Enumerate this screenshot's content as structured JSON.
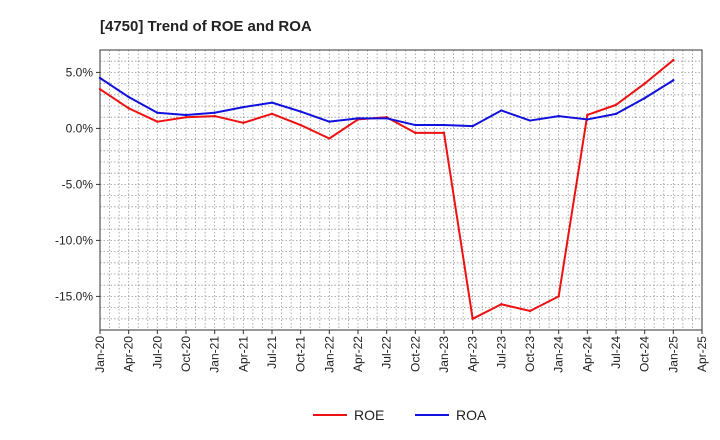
{
  "chart_data": {
    "type": "line",
    "title": "[4750]  Trend of ROE and ROA",
    "xlabel": "",
    "ylabel": "",
    "x_ticks": [
      "Jan-20",
      "Apr-20",
      "Jul-20",
      "Oct-20",
      "Jan-21",
      "Apr-21",
      "Jul-21",
      "Oct-21",
      "Jan-22",
      "Apr-22",
      "Jul-22",
      "Oct-22",
      "Jan-23",
      "Apr-23",
      "Jul-23",
      "Oct-23",
      "Jan-24",
      "Apr-24",
      "Jul-24",
      "Oct-24",
      "Jan-25",
      "Apr-25"
    ],
    "y_ticks": [
      5.0,
      0.0,
      -5.0,
      -10.0,
      -15.0
    ],
    "y_tick_labels": [
      "5.0%",
      "0.0%",
      "-5.0%",
      "-10.0%",
      "-15.0%"
    ],
    "ylim": [
      -18,
      7
    ],
    "grid": true,
    "legend_position": "bottom-center",
    "series": [
      {
        "name": "ROE",
        "color": "#ee1111",
        "x": [
          "Jan-20",
          "Apr-20",
          "Jul-20",
          "Oct-20",
          "Jan-21",
          "Apr-21",
          "Jul-21",
          "Oct-21",
          "Jan-22",
          "Apr-22",
          "Jul-22",
          "Oct-22",
          "Jan-23",
          "Apr-23",
          "Jul-23",
          "Oct-23",
          "Jan-24",
          "Apr-24",
          "Jul-24",
          "Oct-24",
          "Jan-25"
        ],
        "values": [
          3.5,
          1.8,
          0.6,
          1.0,
          1.1,
          0.5,
          1.3,
          0.3,
          -0.9,
          0.8,
          1.0,
          -0.4,
          -0.4,
          -17.0,
          -15.7,
          -16.3,
          -15.0,
          1.2,
          2.1,
          4.0,
          6.1
        ]
      },
      {
        "name": "ROA",
        "color": "#1111dd",
        "x": [
          "Jan-20",
          "Apr-20",
          "Jul-20",
          "Oct-20",
          "Jan-21",
          "Apr-21",
          "Jul-21",
          "Oct-21",
          "Jan-22",
          "Apr-22",
          "Jul-22",
          "Oct-22",
          "Jan-23",
          "Apr-23",
          "Jul-23",
          "Oct-23",
          "Jan-24",
          "Apr-24",
          "Jul-24",
          "Oct-24",
          "Jan-25"
        ],
        "values": [
          4.5,
          2.8,
          1.4,
          1.2,
          1.4,
          1.9,
          2.3,
          1.5,
          0.6,
          0.9,
          0.9,
          0.3,
          0.3,
          0.2,
          1.6,
          0.7,
          1.1,
          0.8,
          1.3,
          2.7,
          4.3
        ]
      }
    ]
  }
}
